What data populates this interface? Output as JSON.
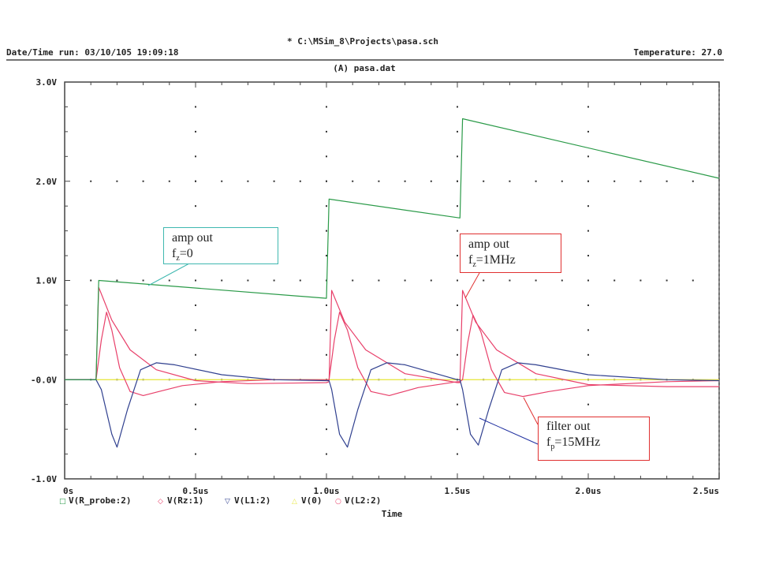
{
  "header": {
    "title": "* C:\\MSim_8\\Projects\\pasa.sch",
    "run": "Date/Time run: 03/10/105 19:09:18",
    "temperature": "Temperature: 27.0",
    "file": "(A) pasa.dat"
  },
  "annotations": {
    "a1": {
      "line1": "amp out",
      "sym": "f",
      "sub": "z",
      "rest": "=0"
    },
    "a2": {
      "line1": "amp out",
      "sym": "f",
      "sub": "z",
      "rest": "=1MHz"
    },
    "a3": {
      "line1": "filter out",
      "sym": "f",
      "sub": "p",
      "rest": "=15MHz"
    }
  },
  "colors": {
    "frame": "#444444",
    "green": "#2a9a48",
    "red": "#e8406a",
    "blue": "#30408f",
    "yellow": "#e8e84a",
    "annot_cyan": "#3fb8b0",
    "annot_red": "#e03030",
    "annot_blue": "#2030a0"
  },
  "chart_data": {
    "type": "line",
    "xlabel": "Time",
    "ylabel": "",
    "xlim": [
      0,
      2.5
    ],
    "ylim": [
      -1.0,
      3.0
    ],
    "x_unit": "us",
    "x_ticks": [
      "0s",
      "0.5us",
      "1.0us",
      "1.5us",
      "2.0us",
      "2.5us"
    ],
    "y_ticks": [
      "-1.0V",
      "-0.0V",
      "1.0V",
      "2.0V",
      "3.0V"
    ],
    "grid": "dotted",
    "legend_position": "bottom",
    "series": [
      {
        "name": "V(R_probe:2)",
        "marker": "□",
        "color": "#2a9a48",
        "x": [
          0,
          0.12,
          0.13,
          1.0,
          1.01,
          1.51,
          1.52,
          2.5
        ],
        "y": [
          0,
          0,
          1.0,
          0.82,
          1.82,
          1.63,
          2.63,
          2.03
        ]
      },
      {
        "name": "V(Rz:1)",
        "marker": "◇",
        "color": "#e8406a",
        "x": [
          0,
          0.12,
          0.13,
          0.18,
          0.25,
          0.35,
          0.5,
          0.7,
          1.0,
          1.01,
          1.02,
          1.07,
          1.15,
          1.3,
          1.5,
          1.51,
          1.52,
          1.57,
          1.65,
          1.8,
          2.0,
          2.3,
          2.5
        ],
        "y": [
          0,
          0,
          0.93,
          0.6,
          0.3,
          0.1,
          -0.01,
          -0.04,
          -0.03,
          -0.02,
          0.9,
          0.58,
          0.3,
          0.06,
          -0.03,
          -0.03,
          0.9,
          0.58,
          0.3,
          0.06,
          -0.05,
          -0.07,
          -0.07
        ]
      },
      {
        "name": "V(L1:2)",
        "marker": "▽",
        "color": "#30408f",
        "x": [
          0,
          0.12,
          0.14,
          0.18,
          0.2,
          0.24,
          0.29,
          0.35,
          0.42,
          0.6,
          0.8,
          1.0,
          1.01,
          1.02,
          1.05,
          1.08,
          1.12,
          1.17,
          1.23,
          1.3,
          1.5,
          1.51,
          1.52,
          1.55,
          1.58,
          1.62,
          1.67,
          1.73,
          1.8,
          2.0,
          2.3,
          2.5
        ],
        "y": [
          0,
          0,
          -0.1,
          -0.55,
          -0.68,
          -0.3,
          0.1,
          0.17,
          0.15,
          0.05,
          0.0,
          -0.01,
          -0.01,
          -0.1,
          -0.55,
          -0.68,
          -0.3,
          0.1,
          0.17,
          0.15,
          0.0,
          0.0,
          -0.1,
          -0.55,
          -0.66,
          -0.3,
          0.1,
          0.17,
          0.15,
          0.05,
          0.0,
          -0.01
        ]
      },
      {
        "name": "V(0)",
        "marker": "△",
        "color": "#e8e84a",
        "x": [
          0,
          2.5
        ],
        "y": [
          0,
          0
        ]
      },
      {
        "name": "V(L2:2)",
        "marker": "○",
        "color": "#e8406a",
        "x": [
          0,
          0.12,
          0.14,
          0.16,
          0.18,
          0.21,
          0.25,
          0.3,
          0.36,
          0.45,
          0.6,
          0.8,
          1.0,
          1.01,
          1.03,
          1.05,
          1.08,
          1.12,
          1.17,
          1.24,
          1.35,
          1.5,
          1.51,
          1.52,
          1.54,
          1.56,
          1.59,
          1.63,
          1.68,
          1.75,
          1.85,
          2.0,
          2.3,
          2.5
        ],
        "y": [
          0,
          0,
          0.4,
          0.68,
          0.5,
          0.12,
          -0.12,
          -0.16,
          -0.12,
          -0.06,
          -0.02,
          0.0,
          0.0,
          0.0,
          0.4,
          0.68,
          0.5,
          0.12,
          -0.12,
          -0.16,
          -0.08,
          -0.02,
          -0.02,
          0.0,
          0.38,
          0.65,
          0.48,
          0.1,
          -0.13,
          -0.17,
          -0.12,
          -0.06,
          -0.02,
          -0.01
        ]
      }
    ]
  }
}
